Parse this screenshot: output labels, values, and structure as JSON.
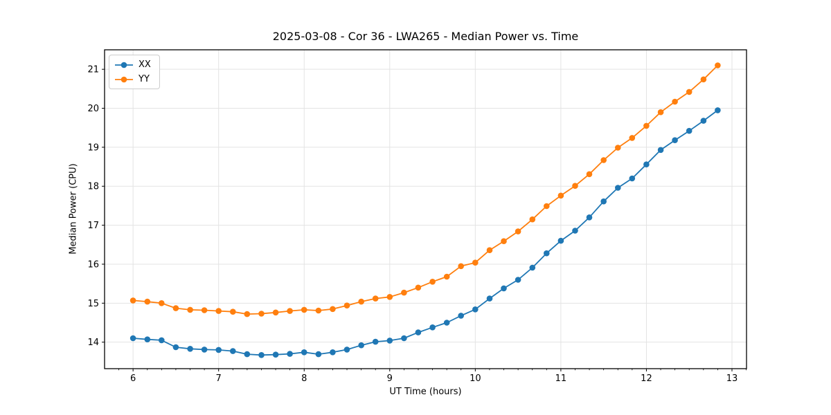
{
  "chart_data": {
    "type": "line",
    "title": "2025-03-08 - Cor 36 - LWA265 - Median Power vs. Time",
    "xlabel": "UT Time (hours)",
    "ylabel": "Median Power (CPU)",
    "xlim": [
      5.667,
      13.17
    ],
    "ylim": [
      13.32,
      21.5
    ],
    "xticks": [
      6,
      7,
      8,
      9,
      10,
      11,
      12,
      13
    ],
    "yticks": [
      14,
      15,
      16,
      17,
      18,
      19,
      20,
      21
    ],
    "x_minor_divisions": 6,
    "grid": true,
    "legend_position": "upper-left",
    "x": [
      6.0,
      6.167,
      6.333,
      6.5,
      6.667,
      6.833,
      7.0,
      7.167,
      7.333,
      7.5,
      7.667,
      7.833,
      8.0,
      8.167,
      8.333,
      8.5,
      8.667,
      8.833,
      9.0,
      9.167,
      9.333,
      9.5,
      9.667,
      9.833,
      10.0,
      10.167,
      10.333,
      10.5,
      10.667,
      10.833,
      11.0,
      11.167,
      11.333,
      11.5,
      11.667,
      11.833,
      12.0,
      12.167,
      12.333,
      12.5,
      12.667,
      12.833
    ],
    "series": [
      {
        "name": "XX",
        "color": "#1f77b4",
        "values": [
          14.1,
          14.07,
          14.05,
          13.87,
          13.83,
          13.81,
          13.8,
          13.77,
          13.69,
          13.67,
          13.68,
          13.7,
          13.74,
          13.69,
          13.74,
          13.81,
          13.92,
          14.01,
          14.04,
          14.1,
          14.25,
          14.38,
          14.5,
          14.68,
          14.84,
          15.12,
          15.38,
          15.6,
          15.91,
          16.28,
          16.6,
          16.86,
          17.2,
          17.61,
          17.96,
          18.2,
          18.56,
          18.93,
          19.18,
          19.42,
          19.68,
          19.95
        ]
      },
      {
        "name": "YY",
        "color": "#ff7f0e",
        "values": [
          15.07,
          15.04,
          15.0,
          14.87,
          14.83,
          14.82,
          14.8,
          14.78,
          14.72,
          14.73,
          14.76,
          14.8,
          14.83,
          14.81,
          14.85,
          14.94,
          15.04,
          15.12,
          15.16,
          15.27,
          15.4,
          15.55,
          15.68,
          15.95,
          16.04,
          16.36,
          16.59,
          16.84,
          17.15,
          17.49,
          17.76,
          18.01,
          18.31,
          18.67,
          18.99,
          19.24,
          19.55,
          19.9,
          20.17,
          20.42,
          20.74,
          21.1
        ]
      }
    ]
  },
  "colors": {
    "background": "#ffffff",
    "grid": "#e3e3e3",
    "spine": "#000000",
    "tick_text": "#000000",
    "legend_border": "#cccccc"
  }
}
